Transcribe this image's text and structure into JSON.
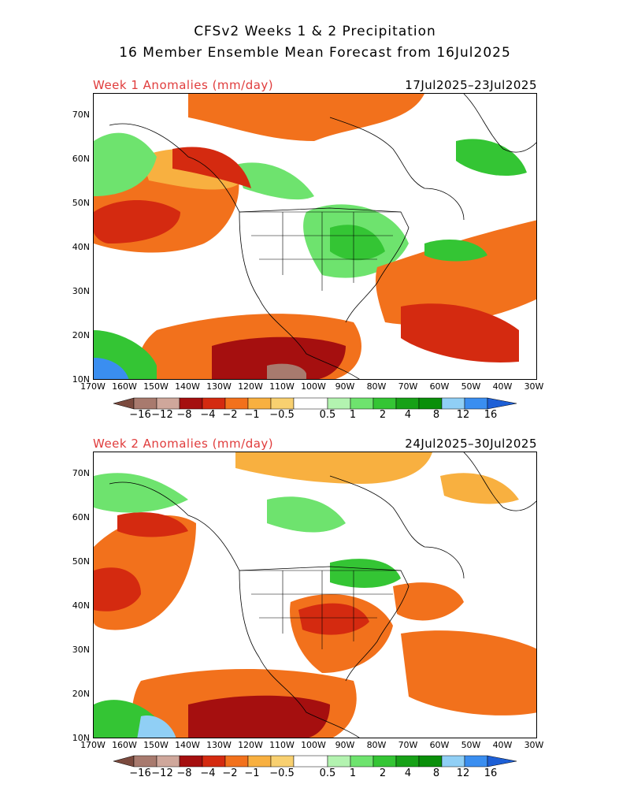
{
  "title": {
    "line1": "CFSv2 Weeks 1 & 2 Precipitation",
    "line2": "16 Member Ensemble Mean Forecast from 16Jul2025"
  },
  "panels": [
    {
      "label": "Week 1 Anomalies (mm/day)",
      "dates": "17Jul2025–23Jul2025"
    },
    {
      "label": "Week 2 Anomalies (mm/day)",
      "dates": "24Jul2025–30Jul2025"
    }
  ],
  "lat_labels": [
    "70N",
    "60N",
    "50N",
    "40N",
    "30N",
    "20N",
    "10N"
  ],
  "lon_labels": [
    "170W",
    "160W",
    "150W",
    "140W",
    "130W",
    "120W",
    "110W",
    "100W",
    "90W",
    "80W",
    "70W",
    "60W",
    "50W",
    "40W",
    "30W"
  ],
  "colorbar": {
    "tick_labels": [
      "−16",
      "−12",
      "−8",
      "−4",
      "−2",
      "−1",
      "−0.5",
      "0.5",
      "1",
      "2",
      "4",
      "8",
      "12",
      "16"
    ],
    "colors": [
      "#7b4a3e",
      "#a87a6e",
      "#cfa79b",
      "#a50f0f",
      "#d42a10",
      "#f2711c",
      "#f8b040",
      "#ffffff",
      "#b3f3b0",
      "#6ee36e",
      "#34c534",
      "#17a117",
      "#0a8f0a",
      "#90cff5",
      "#3a8ef0",
      "#1d5fd6"
    ]
  }
}
